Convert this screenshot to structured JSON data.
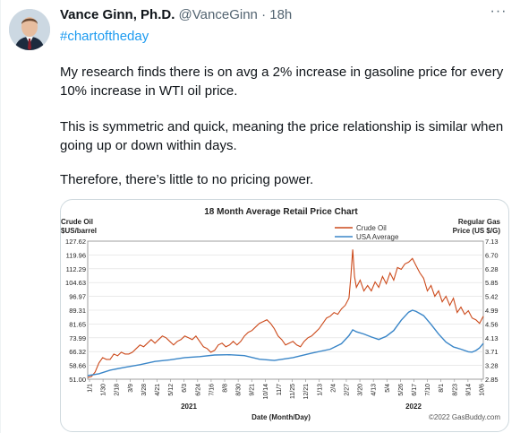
{
  "tweet": {
    "author_name": "Vance Ginn, Ph.D.",
    "author_handle": "@VanceGinn",
    "separator": "·",
    "time": "18h",
    "more_icon": "···",
    "hashtag": "#chartoftheday",
    "paragraphs": [
      "My research finds there is on avg a 2% increase in gasoline price for every 10% increase in WTI oil price.",
      "This is symmetric and quick, meaning the price relationship is similar when going up or down within days.",
      "Therefore, there’s little to no pricing power."
    ]
  },
  "chart_data": {
    "type": "line",
    "title": "18 Month Average Retail Price Chart",
    "left_axis_label": [
      "Crude Oil",
      "$US/barrel"
    ],
    "right_axis_label": [
      "Regular Gas",
      "Price (US $/G)"
    ],
    "xlabel": "Date (Month/Day)",
    "years": [
      "2021",
      "2022"
    ],
    "watermark": "©2022 GasBuddy.com",
    "left_ticks": [
      "51.00",
      "58.66",
      "66.32",
      "73.99",
      "81.65",
      "89.31",
      "96.97",
      "104.63",
      "112.29",
      "119.96",
      "127.62"
    ],
    "right_ticks": [
      "2.85",
      "3.28",
      "3.71",
      "4.13",
      "4.56",
      "4.99",
      "5.42",
      "5.85",
      "6.28",
      "6.70",
      "7.13"
    ],
    "left_ylim": [
      51.0,
      127.62
    ],
    "right_ylim": [
      2.85,
      7.13
    ],
    "x_ticks": [
      "1/1",
      "1/30",
      "2/18",
      "3/9",
      "3/28",
      "4/21",
      "5/12",
      "6/3",
      "6/24",
      "7/16",
      "8/8",
      "8/30",
      "9/21",
      "10/14",
      "11/7",
      "11/25",
      "12/21",
      "1/13",
      "2/4",
      "2/27",
      "3/20",
      "4/13",
      "5/4",
      "5/26",
      "6/17",
      "7/10",
      "8/1",
      "8/23",
      "9/14",
      "10/6"
    ],
    "series": [
      {
        "name": "Crude Oil",
        "color": "#cc4a1b",
        "axis": "left",
        "points": [
          [
            0,
            52
          ],
          [
            1,
            52.5
          ],
          [
            2,
            55
          ],
          [
            3,
            60
          ],
          [
            4,
            63
          ],
          [
            5,
            62
          ],
          [
            6,
            62
          ],
          [
            7,
            65
          ],
          [
            8,
            64
          ],
          [
            9,
            66
          ],
          [
            10,
            65
          ],
          [
            11,
            65
          ],
          [
            12,
            66
          ],
          [
            13,
            68
          ],
          [
            14,
            70
          ],
          [
            15,
            69
          ],
          [
            16,
            71
          ],
          [
            17,
            73
          ],
          [
            18,
            71
          ],
          [
            19,
            73
          ],
          [
            20,
            75
          ],
          [
            21,
            74
          ],
          [
            22,
            72
          ],
          [
            23,
            70
          ],
          [
            24,
            72
          ],
          [
            25,
            73
          ],
          [
            26,
            75
          ],
          [
            27,
            74
          ],
          [
            28,
            73
          ],
          [
            29,
            75
          ],
          [
            30,
            72
          ],
          [
            31,
            69
          ],
          [
            32,
            68
          ],
          [
            33,
            66
          ],
          [
            34,
            67
          ],
          [
            35,
            70
          ],
          [
            36,
            71
          ],
          [
            37,
            69
          ],
          [
            38,
            70
          ],
          [
            39,
            72
          ],
          [
            40,
            70
          ],
          [
            41,
            72
          ],
          [
            42,
            75
          ],
          [
            43,
            77
          ],
          [
            44,
            78
          ],
          [
            45,
            80
          ],
          [
            46,
            82
          ],
          [
            47,
            83
          ],
          [
            48,
            84
          ],
          [
            49,
            82
          ],
          [
            50,
            79
          ],
          [
            51,
            75
          ],
          [
            52,
            73
          ],
          [
            53,
            70
          ],
          [
            54,
            71
          ],
          [
            55,
            72
          ],
          [
            56,
            70
          ],
          [
            57,
            69
          ],
          [
            58,
            72
          ],
          [
            59,
            74
          ],
          [
            60,
            75
          ],
          [
            61,
            77
          ],
          [
            62,
            79
          ],
          [
            63,
            82
          ],
          [
            64,
            85
          ],
          [
            65,
            86
          ],
          [
            66,
            88
          ],
          [
            67,
            87
          ],
          [
            68,
            90
          ],
          [
            69,
            92
          ],
          [
            70,
            96
          ],
          [
            70.5,
            108
          ],
          [
            71,
            123
          ],
          [
            71.5,
            108
          ],
          [
            72,
            102
          ],
          [
            73,
            106
          ],
          [
            74,
            100
          ],
          [
            75,
            103
          ],
          [
            76,
            100
          ],
          [
            77,
            105
          ],
          [
            78,
            102
          ],
          [
            79,
            108
          ],
          [
            80,
            104
          ],
          [
            81,
            110
          ],
          [
            82,
            106
          ],
          [
            83,
            113
          ],
          [
            84,
            112
          ],
          [
            85,
            115
          ],
          [
            86,
            116
          ],
          [
            87,
            118
          ],
          [
            88,
            114
          ],
          [
            89,
            110
          ],
          [
            90,
            107
          ],
          [
            91,
            100
          ],
          [
            92,
            103
          ],
          [
            93,
            97
          ],
          [
            94,
            100
          ],
          [
            95,
            94
          ],
          [
            96,
            97
          ],
          [
            97,
            92
          ],
          [
            98,
            96
          ],
          [
            99,
            88
          ],
          [
            100,
            91
          ],
          [
            101,
            87
          ],
          [
            102,
            89
          ],
          [
            103,
            85
          ],
          [
            104,
            84
          ],
          [
            105,
            82
          ],
          [
            106,
            86
          ]
        ]
      },
      {
        "name": "USA Average",
        "color": "#3a86c8",
        "axis": "right",
        "points": [
          [
            0,
            2.96
          ],
          [
            3,
            3.02
          ],
          [
            6,
            3.13
          ],
          [
            10,
            3.22
          ],
          [
            14,
            3.3
          ],
          [
            18,
            3.4
          ],
          [
            22,
            3.45
          ],
          [
            26,
            3.52
          ],
          [
            30,
            3.55
          ],
          [
            34,
            3.6
          ],
          [
            38,
            3.61
          ],
          [
            42,
            3.58
          ],
          [
            46,
            3.47
          ],
          [
            50,
            3.43
          ],
          [
            55,
            3.52
          ],
          [
            60,
            3.66
          ],
          [
            65,
            3.78
          ],
          [
            68,
            3.95
          ],
          [
            70,
            4.2
          ],
          [
            71,
            4.38
          ],
          [
            72,
            4.32
          ],
          [
            74,
            4.25
          ],
          [
            76,
            4.16
          ],
          [
            78,
            4.08
          ],
          [
            80,
            4.18
          ],
          [
            82,
            4.36
          ],
          [
            84,
            4.68
          ],
          [
            86,
            4.93
          ],
          [
            87,
            4.99
          ],
          [
            88,
            4.95
          ],
          [
            90,
            4.82
          ],
          [
            92,
            4.55
          ],
          [
            94,
            4.25
          ],
          [
            96,
            4.0
          ],
          [
            98,
            3.85
          ],
          [
            100,
            3.78
          ],
          [
            102,
            3.7
          ],
          [
            103,
            3.69
          ],
          [
            104,
            3.74
          ],
          [
            105,
            3.82
          ],
          [
            106,
            3.96
          ]
        ]
      }
    ]
  }
}
